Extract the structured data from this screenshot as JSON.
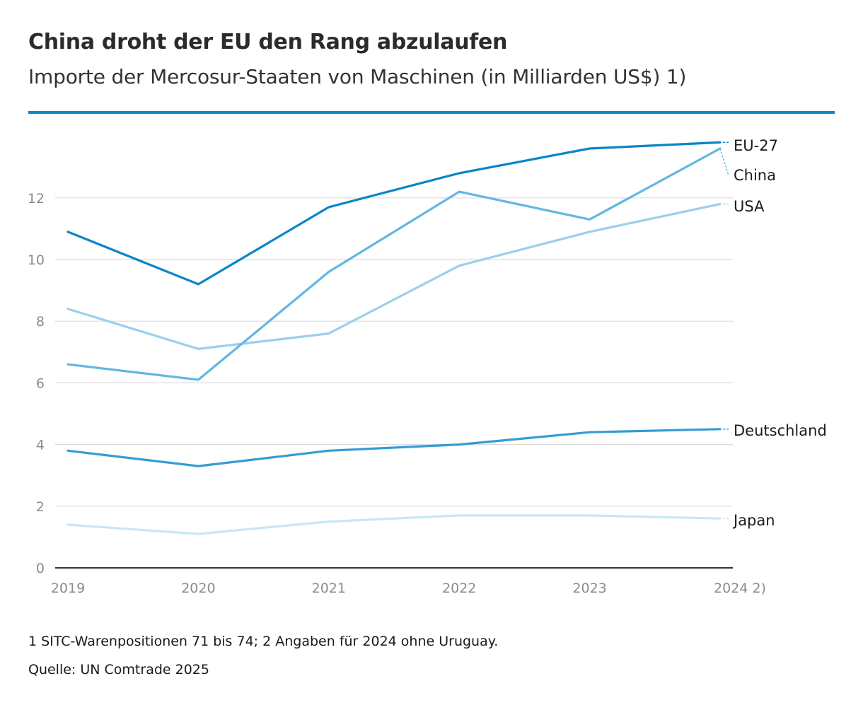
{
  "colors": {
    "rule": "#0a85c9",
    "grid": "#dcdcdc",
    "axis": "#333333"
  },
  "chart_data": {
    "type": "line",
    "title": "China droht der EU den Rang abzulaufen",
    "subtitle": "Importe der Mercosur-Staaten von Maschinen (in Milliarden US$) 1)",
    "categories": [
      "2019",
      "2020",
      "2021",
      "2022",
      "2023",
      "2024"
    ],
    "x_labels": [
      "2019",
      "2020",
      "2021",
      "2022",
      "2023",
      "2024 2)"
    ],
    "ylim": [
      0,
      14
    ],
    "yticks": [
      0,
      2,
      4,
      6,
      8,
      10,
      12
    ],
    "grid": true,
    "legend": "direct labels at right end of lines",
    "series": [
      {
        "name": "Japan",
        "color": "#c9e6f5",
        "values": [
          1.4,
          1.1,
          1.5,
          1.7,
          1.7,
          1.6
        ]
      },
      {
        "name": "Deutschland",
        "color": "#359cd5",
        "values": [
          3.8,
          3.3,
          3.8,
          4.0,
          4.4,
          4.5
        ]
      },
      {
        "name": "USA",
        "color": "#9bd0eb",
        "values": [
          8.4,
          7.1,
          7.6,
          9.8,
          10.9,
          11.8
        ]
      },
      {
        "name": "China",
        "color": "#64b6e1",
        "values": [
          6.6,
          6.1,
          9.6,
          12.2,
          11.3,
          13.6
        ]
      },
      {
        "name": "EU-27",
        "color": "#0a85c9",
        "values": [
          10.9,
          9.2,
          11.7,
          12.8,
          13.6,
          13.8
        ]
      }
    ]
  },
  "footnote": "1 SITC-Warenpositionen 71 bis 74; 2 Angaben für 2024 ohne Uruguay.",
  "source": "Quelle: UN Comtrade 2025"
}
